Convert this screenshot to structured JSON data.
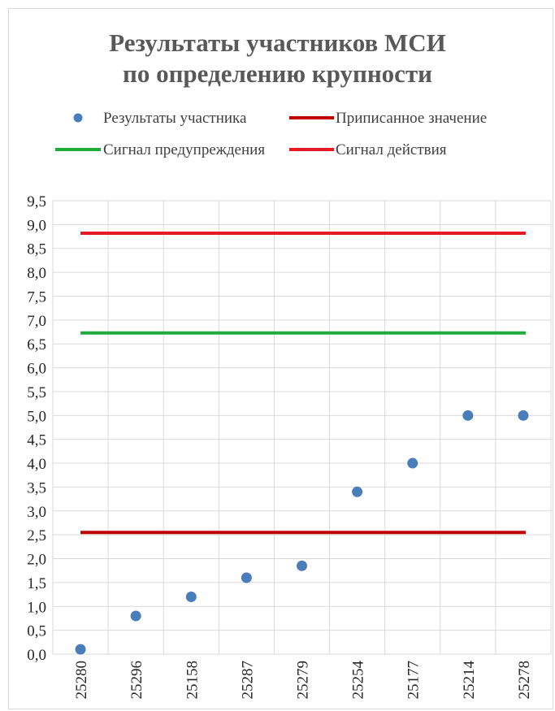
{
  "chart_data": {
    "type": "scatter",
    "title_lines": [
      "Результаты участников МСИ",
      "по определению крупности"
    ],
    "categories": [
      "25280",
      "25296",
      "25158",
      "25287",
      "25279",
      "25254",
      "25177",
      "25214",
      "25278"
    ],
    "series": [
      {
        "name": "Результаты участника",
        "kind": "points",
        "color": "#4a7ebb",
        "values": [
          0.1,
          0.8,
          1.2,
          1.6,
          1.85,
          3.4,
          4.0,
          5.0,
          5.0
        ]
      },
      {
        "name": "Приписанное значение",
        "kind": "line",
        "color": "#c00000",
        "value": 2.55
      },
      {
        "name": "Сигнал предупреждения",
        "kind": "line",
        "color": "#1faa3c",
        "value": 6.73
      },
      {
        "name": "Сигнал действия",
        "kind": "line",
        "color": "#e31b23",
        "value": 8.82
      }
    ],
    "ylim": [
      0,
      9.5
    ],
    "yticks": [
      "0,0",
      "0,5",
      "1,0",
      "1,5",
      "2,0",
      "2,5",
      "3,0",
      "3,5",
      "4,0",
      "4,5",
      "5,0",
      "5,5",
      "6,0",
      "6,5",
      "7,0",
      "7,5",
      "8,0",
      "8,5",
      "9,0",
      "9,5"
    ],
    "grid": true,
    "legend_position": "top"
  }
}
